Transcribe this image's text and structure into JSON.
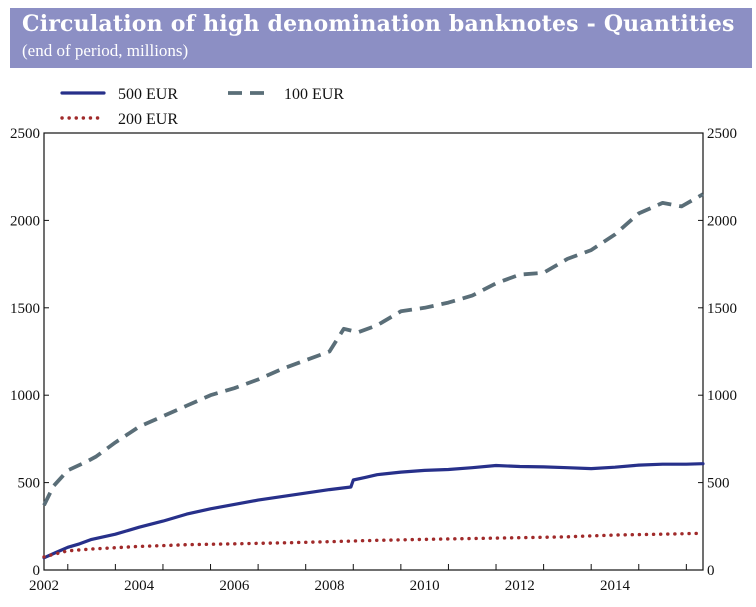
{
  "header": {
    "title": "Circulation of high denomination banknotes - Quantities",
    "subtitle": "(end of period, millions)"
  },
  "chart_data": {
    "type": "line",
    "title": "Circulation of high denomination banknotes - Quantities",
    "subtitle": "(end of period, millions)",
    "xlabel": "",
    "ylabel": "",
    "xlim": [
      2002.0,
      2015.85
    ],
    "ylim": [
      0,
      2500
    ],
    "x_ticks": [
      "2002",
      "2004",
      "2006",
      "2008",
      "2010",
      "2012",
      "2014"
    ],
    "y_ticks": [
      "0",
      "500",
      "1000",
      "1500",
      "2000",
      "2500"
    ],
    "legend": {
      "position": "top-left",
      "columns": 2
    },
    "grid": false,
    "series": [
      {
        "name": "500 EUR",
        "color": "#27308a",
        "style": "solid",
        "points": [
          [
            2002.0,
            70
          ],
          [
            2002.25,
            100
          ],
          [
            2002.5,
            130
          ],
          [
            2002.75,
            150
          ],
          [
            2003.0,
            175
          ],
          [
            2003.5,
            205
          ],
          [
            2004.0,
            245
          ],
          [
            2004.5,
            280
          ],
          [
            2005.0,
            320
          ],
          [
            2005.5,
            350
          ],
          [
            2006.0,
            375
          ],
          [
            2006.5,
            400
          ],
          [
            2007.0,
            420
          ],
          [
            2007.5,
            440
          ],
          [
            2008.0,
            460
          ],
          [
            2008.45,
            475
          ],
          [
            2008.5,
            515
          ],
          [
            2008.75,
            530
          ],
          [
            2009.0,
            545
          ],
          [
            2009.5,
            560
          ],
          [
            2010.0,
            570
          ],
          [
            2010.5,
            575
          ],
          [
            2011.0,
            585
          ],
          [
            2011.5,
            598
          ],
          [
            2012.0,
            592
          ],
          [
            2012.5,
            590
          ],
          [
            2013.0,
            585
          ],
          [
            2013.5,
            580
          ],
          [
            2014.0,
            588
          ],
          [
            2014.5,
            600
          ],
          [
            2015.0,
            605
          ],
          [
            2015.5,
            605
          ],
          [
            2015.85,
            608
          ]
        ]
      },
      {
        "name": "100 EUR",
        "color": "#5a6e78",
        "style": "dashed",
        "points": [
          [
            2002.0,
            370
          ],
          [
            2002.2,
            480
          ],
          [
            2002.5,
            570
          ],
          [
            2002.9,
            620
          ],
          [
            2003.1,
            650
          ],
          [
            2003.5,
            730
          ],
          [
            2004.0,
            820
          ],
          [
            2004.5,
            880
          ],
          [
            2005.0,
            940
          ],
          [
            2005.5,
            1000
          ],
          [
            2006.0,
            1040
          ],
          [
            2006.5,
            1090
          ],
          [
            2007.0,
            1150
          ],
          [
            2007.5,
            1200
          ],
          [
            2008.0,
            1250
          ],
          [
            2008.3,
            1380
          ],
          [
            2008.6,
            1360
          ],
          [
            2009.0,
            1400
          ],
          [
            2009.5,
            1480
          ],
          [
            2010.0,
            1500
          ],
          [
            2010.5,
            1530
          ],
          [
            2011.0,
            1570
          ],
          [
            2011.5,
            1640
          ],
          [
            2012.0,
            1690
          ],
          [
            2012.5,
            1700
          ],
          [
            2013.0,
            1780
          ],
          [
            2013.5,
            1830
          ],
          [
            2014.0,
            1920
          ],
          [
            2014.5,
            2040
          ],
          [
            2015.0,
            2100
          ],
          [
            2015.4,
            2080
          ],
          [
            2015.85,
            2150
          ]
        ]
      },
      {
        "name": "200 EUR",
        "color": "#a02a2a",
        "style": "dotted",
        "points": [
          [
            2002.0,
            75
          ],
          [
            2002.5,
            110
          ],
          [
            2003.0,
            120
          ],
          [
            2004.0,
            135
          ],
          [
            2005.0,
            145
          ],
          [
            2006.0,
            150
          ],
          [
            2007.0,
            155
          ],
          [
            2008.0,
            162
          ],
          [
            2009.0,
            170
          ],
          [
            2010.0,
            175
          ],
          [
            2011.0,
            180
          ],
          [
            2012.0,
            185
          ],
          [
            2013.0,
            190
          ],
          [
            2014.0,
            200
          ],
          [
            2015.0,
            205
          ],
          [
            2015.85,
            210
          ]
        ]
      }
    ]
  }
}
